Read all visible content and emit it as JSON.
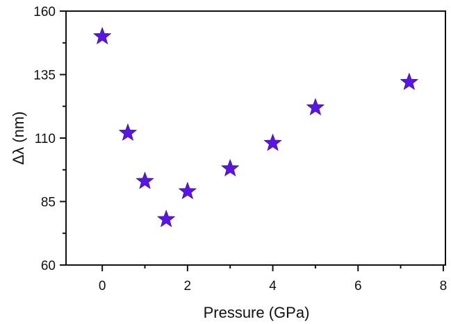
{
  "chart_data": {
    "type": "scatter",
    "title": "",
    "xlabel": "Pressure (GPa)",
    "ylabel": "Δλ (nm)",
    "xlim": [
      -0.85,
      8.05
    ],
    "ylim": [
      60,
      160
    ],
    "xticks": [
      0,
      2,
      4,
      6,
      8
    ],
    "yticks": [
      60,
      85,
      110,
      135,
      160
    ],
    "xtick_labels": [
      "0",
      "2",
      "4",
      "6",
      "8"
    ],
    "ytick_labels": [
      "60",
      "85",
      "110",
      "135",
      "160"
    ],
    "grid": false,
    "marker": "star",
    "series": [
      {
        "color": "#5b13e8",
        "x": [
          0,
          0.6,
          1.0,
          1.5,
          2.0,
          3.0,
          4.0,
          5.0,
          7.2
        ],
        "y": [
          150,
          112,
          93,
          78,
          89,
          98,
          108,
          122,
          132
        ]
      }
    ]
  }
}
